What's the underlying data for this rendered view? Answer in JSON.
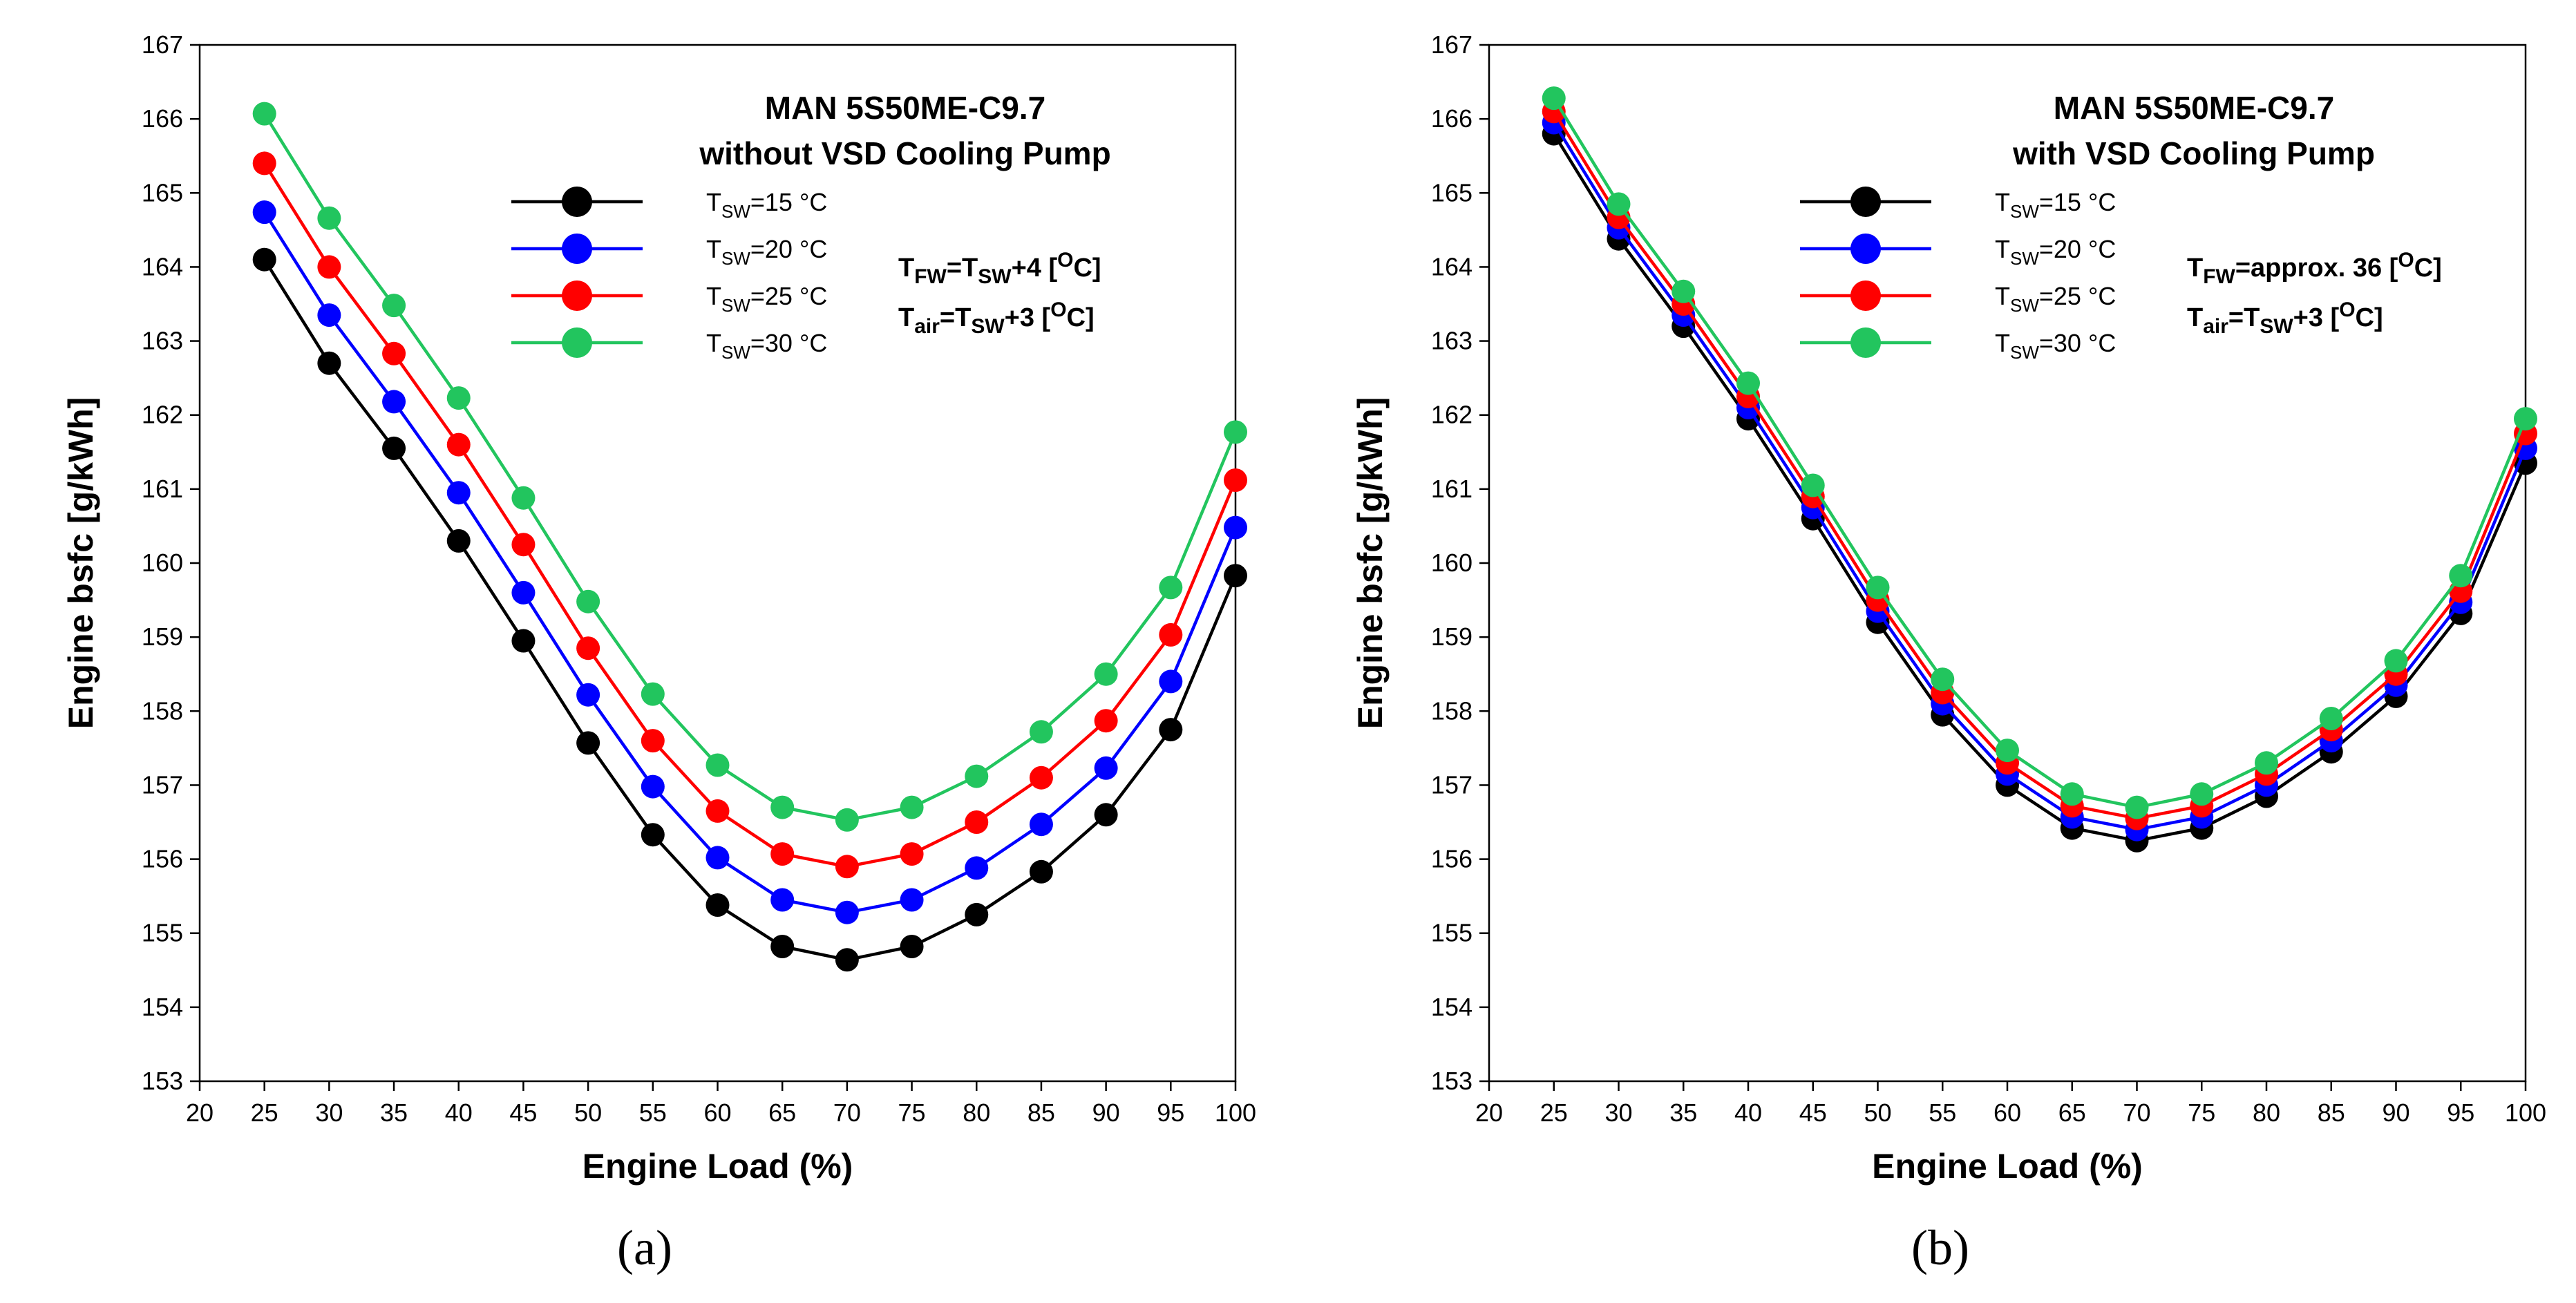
{
  "chart_data": [
    {
      "type": "line",
      "panel_label": "(a)",
      "title_lines": [
        "MAN 5S50ME-C9.7",
        "without VSD Cooling Pump"
      ],
      "xlabel": "Engine Load (%)",
      "ylabel": "Engine bsfc [g/kWh]",
      "xlim": [
        20,
        100
      ],
      "ylim": [
        153,
        167
      ],
      "xticks": [
        20,
        25,
        30,
        35,
        40,
        45,
        50,
        55,
        60,
        65,
        70,
        75,
        80,
        85,
        90,
        95,
        100
      ],
      "yticks": [
        153,
        154,
        155,
        156,
        157,
        158,
        159,
        160,
        161,
        162,
        163,
        164,
        165,
        166,
        167
      ],
      "legend_position": "top-center",
      "x": [
        25,
        30,
        35,
        40,
        45,
        50,
        55,
        60,
        65,
        70,
        75,
        80,
        85,
        90,
        95,
        100
      ],
      "series": [
        {
          "name": "T",
          "sub": "SW",
          "suffix": "=15 °C",
          "color": "#000000",
          "values": [
            164.1,
            162.7,
            161.55,
            160.3,
            158.95,
            157.57,
            156.33,
            155.38,
            154.82,
            154.64,
            154.82,
            155.25,
            155.83,
            156.6,
            157.75,
            159.83
          ]
        },
        {
          "name": "T",
          "sub": "SW",
          "suffix": "=20 °C",
          "color": "#0000ff",
          "values": [
            164.74,
            163.35,
            162.18,
            160.95,
            159.6,
            158.22,
            156.98,
            156.02,
            155.45,
            155.28,
            155.45,
            155.88,
            156.47,
            157.23,
            158.4,
            160.48
          ]
        },
        {
          "name": "T",
          "sub": "SW",
          "suffix": "=25 °C",
          "color": "#ff0000",
          "values": [
            165.4,
            164.0,
            162.83,
            161.6,
            160.25,
            158.85,
            157.6,
            156.65,
            156.07,
            155.9,
            156.07,
            156.5,
            157.1,
            157.87,
            159.03,
            161.12
          ]
        },
        {
          "name": "T",
          "sub": "SW",
          "suffix": "=30 °C",
          "color": "#22c55e",
          "values": [
            166.07,
            164.66,
            163.48,
            162.23,
            160.88,
            159.48,
            158.23,
            157.27,
            156.7,
            156.53,
            156.7,
            157.12,
            157.72,
            158.5,
            159.67,
            161.77
          ]
        }
      ],
      "annotations": [
        {
          "parts": [
            "T",
            "FW",
            "=T",
            "SW",
            "+4 [",
            "O",
            "C]"
          ]
        },
        {
          "parts": [
            "T",
            "air",
            "=T",
            "SW",
            "+3 [",
            "O",
            "C]"
          ]
        }
      ]
    },
    {
      "type": "line",
      "panel_label": "(b)",
      "title_lines": [
        "MAN 5S50ME-C9.7",
        "with VSD Cooling Pump"
      ],
      "xlabel": "Engine Load (%)",
      "ylabel": "Engine bsfc [g/kWh]",
      "xlim": [
        20,
        100
      ],
      "ylim": [
        153,
        167
      ],
      "xticks": [
        20,
        25,
        30,
        35,
        40,
        45,
        50,
        55,
        60,
        65,
        70,
        75,
        80,
        85,
        90,
        95,
        100
      ],
      "yticks": [
        153,
        154,
        155,
        156,
        157,
        158,
        159,
        160,
        161,
        162,
        163,
        164,
        165,
        166,
        167
      ],
      "legend_position": "top-center",
      "x": [
        25,
        30,
        35,
        40,
        45,
        50,
        55,
        60,
        65,
        70,
        75,
        80,
        85,
        90,
        95,
        100
      ],
      "series": [
        {
          "name": "T",
          "sub": "SW",
          "suffix": "=15 °C",
          "color": "#000000",
          "values": [
            165.8,
            164.38,
            163.2,
            161.95,
            160.6,
            159.2,
            157.95,
            157.0,
            156.42,
            156.25,
            156.42,
            156.85,
            157.45,
            158.2,
            159.32,
            161.35
          ]
        },
        {
          "name": "T",
          "sub": "SW",
          "suffix": "=20 °C",
          "color": "#0000ff",
          "values": [
            165.95,
            164.53,
            163.35,
            162.1,
            160.75,
            159.35,
            158.1,
            157.15,
            156.57,
            156.4,
            156.57,
            157.0,
            157.6,
            158.35,
            159.47,
            161.55
          ]
        },
        {
          "name": "T",
          "sub": "SW",
          "suffix": "=25 °C",
          "color": "#ff0000",
          "values": [
            166.1,
            164.67,
            163.5,
            162.25,
            160.9,
            159.5,
            158.25,
            157.3,
            156.72,
            156.55,
            156.72,
            157.15,
            157.75,
            158.5,
            159.62,
            161.75
          ]
        },
        {
          "name": "T",
          "sub": "SW",
          "suffix": "=30 °C",
          "color": "#22c55e",
          "values": [
            166.28,
            164.85,
            163.67,
            162.43,
            161.05,
            159.67,
            158.43,
            157.47,
            156.88,
            156.7,
            156.88,
            157.3,
            157.9,
            158.68,
            159.83,
            161.95
          ]
        }
      ],
      "annotations": [
        {
          "parts": [
            "T",
            "FW",
            "=approx. 36 [",
            "O",
            "C]"
          ]
        },
        {
          "parts": [
            "T",
            "air",
            "=T",
            "SW",
            "+3 [",
            "O",
            "C]"
          ]
        }
      ]
    }
  ]
}
